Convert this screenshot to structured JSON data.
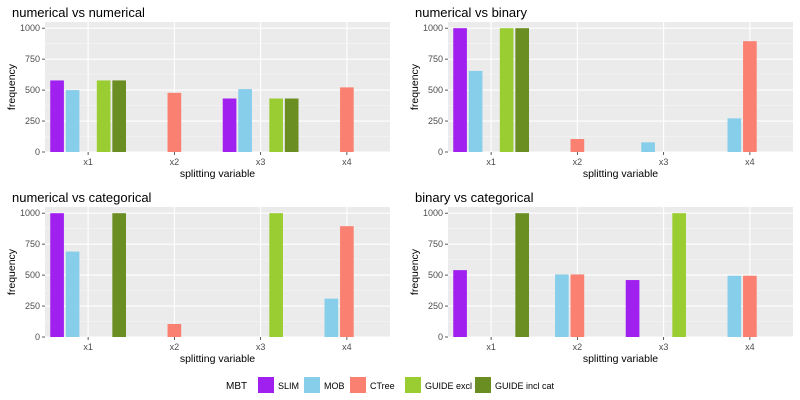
{
  "legend": {
    "title": "MBT",
    "entries": [
      {
        "name": "SLIM",
        "color": "#A020F0"
      },
      {
        "name": "MOB",
        "color": "#87CEEB"
      },
      {
        "name": "CTree",
        "color": "#FA8072"
      },
      {
        "name": "GUIDE excl cat",
        "color": "#9ACD32"
      },
      {
        "name": "GUIDE incl cat",
        "color": "#6B8E23"
      }
    ]
  },
  "chart_data": [
    {
      "type": "bar",
      "title": "numerical vs numerical",
      "xlabel": "splitting variable",
      "ylabel": "frequency",
      "categories": [
        "x1",
        "x2",
        "x3",
        "x4"
      ],
      "yticks": [
        "0",
        "250",
        "500",
        "750",
        "1000"
      ],
      "ylim": [
        0,
        1050
      ],
      "series": [
        {
          "name": "SLIM",
          "values": [
            578,
            0,
            432,
            0
          ]
        },
        {
          "name": "MOB",
          "values": [
            500,
            0,
            508,
            0
          ]
        },
        {
          "name": "CTree",
          "values": [
            0,
            478,
            0,
            522
          ]
        },
        {
          "name": "GUIDE excl cat",
          "values": [
            578,
            0,
            432,
            0
          ]
        },
        {
          "name": "GUIDE incl cat",
          "values": [
            578,
            0,
            432,
            0
          ]
        }
      ]
    },
    {
      "type": "bar",
      "title": "numerical vs binary",
      "xlabel": "splitting variable",
      "ylabel": "frequency",
      "categories": [
        "x1",
        "x2",
        "x3",
        "x4"
      ],
      "yticks": [
        "0",
        "250",
        "500",
        "750",
        "1000"
      ],
      "ylim": [
        0,
        1050
      ],
      "series": [
        {
          "name": "SLIM",
          "values": [
            1000,
            0,
            0,
            0
          ]
        },
        {
          "name": "MOB",
          "values": [
            655,
            0,
            78,
            272
          ]
        },
        {
          "name": "CTree",
          "values": [
            0,
            105,
            0,
            895
          ]
        },
        {
          "name": "GUIDE excl cat",
          "values": [
            1000,
            0,
            0,
            0
          ]
        },
        {
          "name": "GUIDE incl cat",
          "values": [
            1000,
            0,
            0,
            0
          ]
        }
      ]
    },
    {
      "type": "bar",
      "title": "numerical vs categorical",
      "xlabel": "splitting variable",
      "ylabel": "frequency",
      "categories": [
        "x1",
        "x2",
        "x3",
        "x4"
      ],
      "yticks": [
        "0",
        "250",
        "500",
        "750",
        "1000"
      ],
      "ylim": [
        0,
        1050
      ],
      "series": [
        {
          "name": "SLIM",
          "values": [
            1000,
            0,
            0,
            0
          ]
        },
        {
          "name": "MOB",
          "values": [
            690,
            0,
            0,
            310
          ]
        },
        {
          "name": "CTree",
          "values": [
            0,
            105,
            0,
            895
          ]
        },
        {
          "name": "GUIDE excl cat",
          "values": [
            0,
            0,
            1000,
            0
          ]
        },
        {
          "name": "GUIDE incl cat",
          "values": [
            1000,
            0,
            0,
            0
          ]
        }
      ]
    },
    {
      "type": "bar",
      "title": "binary vs categorical",
      "xlabel": "splitting variable",
      "ylabel": "frequency",
      "categories": [
        "x1",
        "x2",
        "x3",
        "x4"
      ],
      "yticks": [
        "0",
        "250",
        "500",
        "750",
        "1000"
      ],
      "ylim": [
        0,
        1050
      ],
      "series": [
        {
          "name": "SLIM",
          "values": [
            540,
            0,
            460,
            0
          ]
        },
        {
          "name": "MOB",
          "values": [
            0,
            505,
            0,
            495
          ]
        },
        {
          "name": "CTree",
          "values": [
            0,
            505,
            0,
            495
          ]
        },
        {
          "name": "GUIDE excl cat",
          "values": [
            0,
            0,
            1000,
            0
          ]
        },
        {
          "name": "GUIDE incl cat",
          "values": [
            1000,
            0,
            0,
            0
          ]
        }
      ]
    }
  ]
}
